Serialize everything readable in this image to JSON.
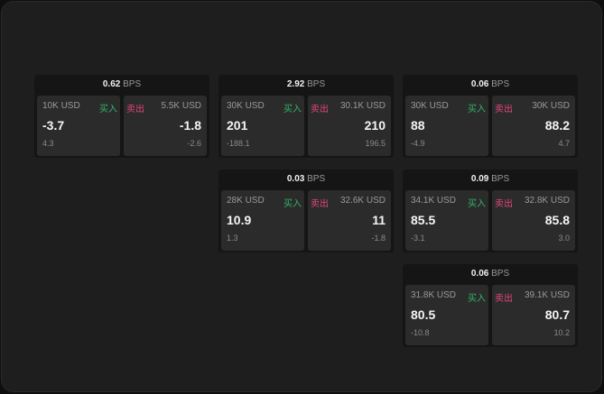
{
  "unit": "BPS",
  "buy_label": "买入",
  "sell_label": "卖出",
  "colors": {
    "buy": "#2fb56a",
    "sell": "#e0457a"
  },
  "panels": [
    {
      "spread": "0.62",
      "buy": {
        "size": "10K USD",
        "price": "-3.7",
        "change": "4.3"
      },
      "sell": {
        "size": "5.5K USD",
        "price": "-1.8",
        "change": "-2.6"
      }
    },
    {
      "spread": "2.92",
      "buy": {
        "size": "30K USD",
        "price": "201",
        "change": "-188.1"
      },
      "sell": {
        "size": "30.1K USD",
        "price": "210",
        "change": "196.5"
      }
    },
    {
      "spread": "0.06",
      "buy": {
        "size": "30K USD",
        "price": "88",
        "change": "-4.9"
      },
      "sell": {
        "size": "30K USD",
        "price": "88.2",
        "change": "4.7"
      }
    },
    {
      "spread": "0.03",
      "buy": {
        "size": "28K USD",
        "price": "10.9",
        "change": "1.3"
      },
      "sell": {
        "size": "32.6K USD",
        "price": "11",
        "change": "-1.8"
      }
    },
    {
      "spread": "0.09",
      "buy": {
        "size": "34.1K USD",
        "price": "85.5",
        "change": "-3.1"
      },
      "sell": {
        "size": "32.8K USD",
        "price": "85.8",
        "change": "3.0"
      }
    },
    {
      "spread": "0.06",
      "buy": {
        "size": "31.8K USD",
        "price": "80.5",
        "change": "-10.8"
      },
      "sell": {
        "size": "39.1K USD",
        "price": "80.7",
        "change": "10.2"
      }
    }
  ]
}
